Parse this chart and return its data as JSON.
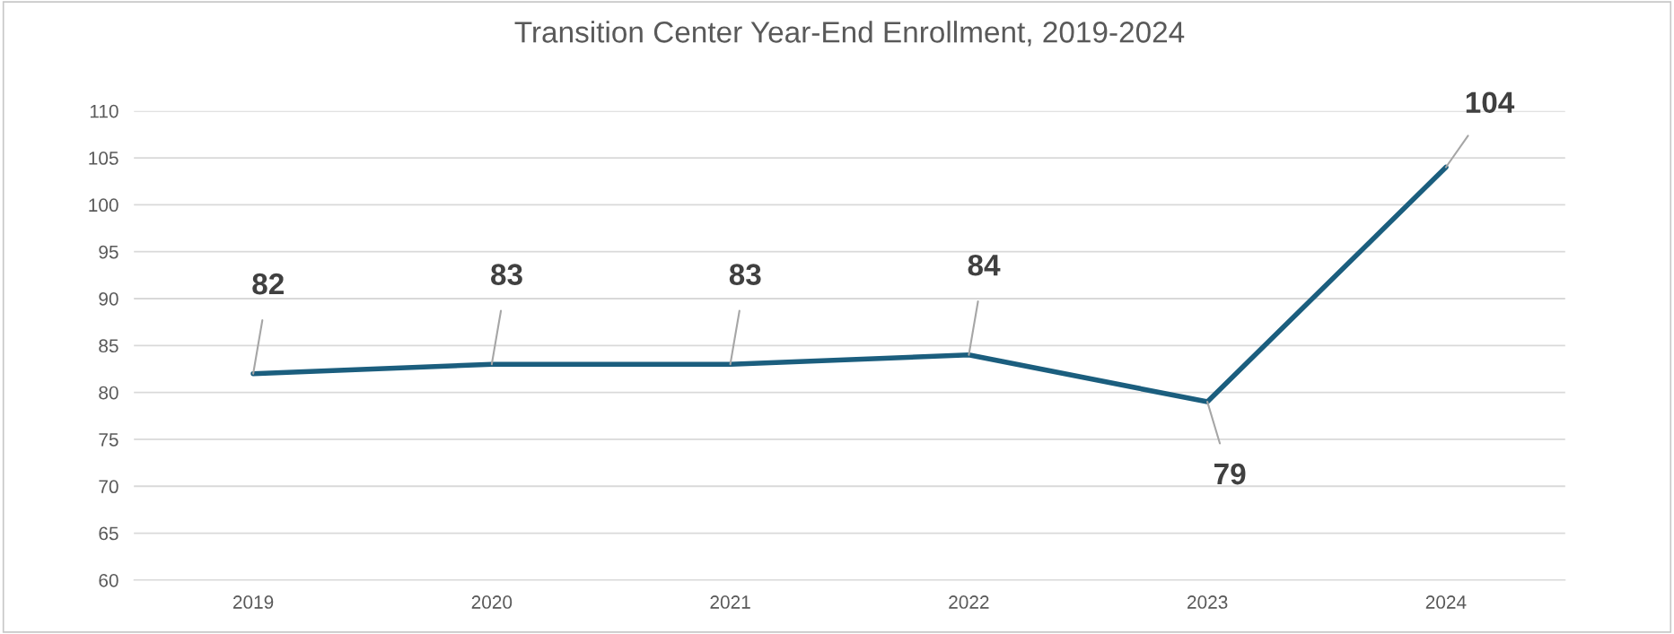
{
  "chart_data": {
    "type": "line",
    "title": "Transition Center Year-End Enrollment, 2019-2024",
    "categories": [
      "2019",
      "2020",
      "2021",
      "2022",
      "2023",
      "2024"
    ],
    "series": [
      {
        "color": "#1b5e7e",
        "values": [
          82,
          83,
          83,
          84,
          79,
          104
        ]
      }
    ],
    "ylim": [
      60,
      110
    ],
    "yticks": [
      60,
      65,
      70,
      75,
      80,
      85,
      90,
      95,
      100,
      105,
      110
    ],
    "grid": "y",
    "data_labels": true,
    "legend": false,
    "marker": "none",
    "line_style": "solid"
  }
}
